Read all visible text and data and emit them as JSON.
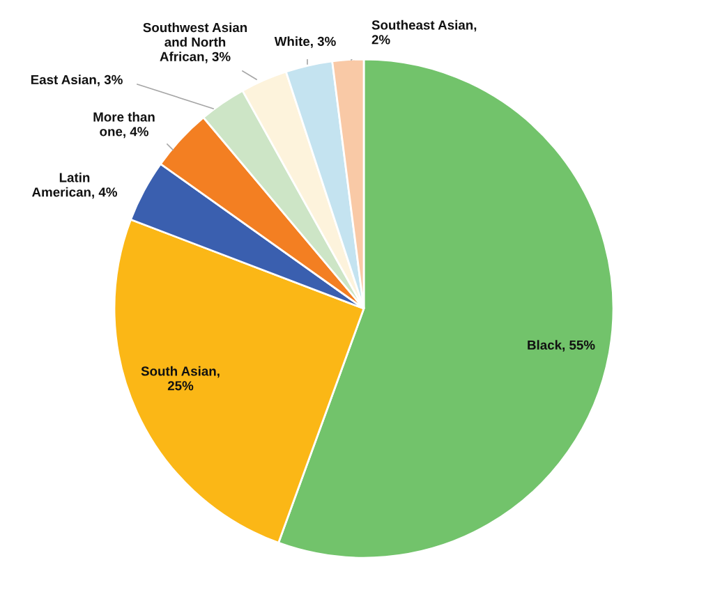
{
  "chart_data": {
    "type": "pie",
    "categories": [
      "Black",
      "South Asian",
      "Latin American",
      "More than one",
      "East Asian",
      "Southwest Asian and North African",
      "White",
      "Southeast Asian"
    ],
    "values": [
      55,
      25,
      4,
      4,
      3,
      3,
      3,
      2
    ],
    "colors": [
      "#72c36b",
      "#fbb716",
      "#3a5faf",
      "#f37f22",
      "#cde5c6",
      "#fdf3dc",
      "#c4e3f0",
      "#f9c9a6"
    ],
    "value_labels": [
      ", 55%",
      ", 25%",
      ", 4%",
      ", 4%",
      ", 3%",
      ", 3%",
      ", 3%",
      ", 2%"
    ],
    "legend": false
  }
}
